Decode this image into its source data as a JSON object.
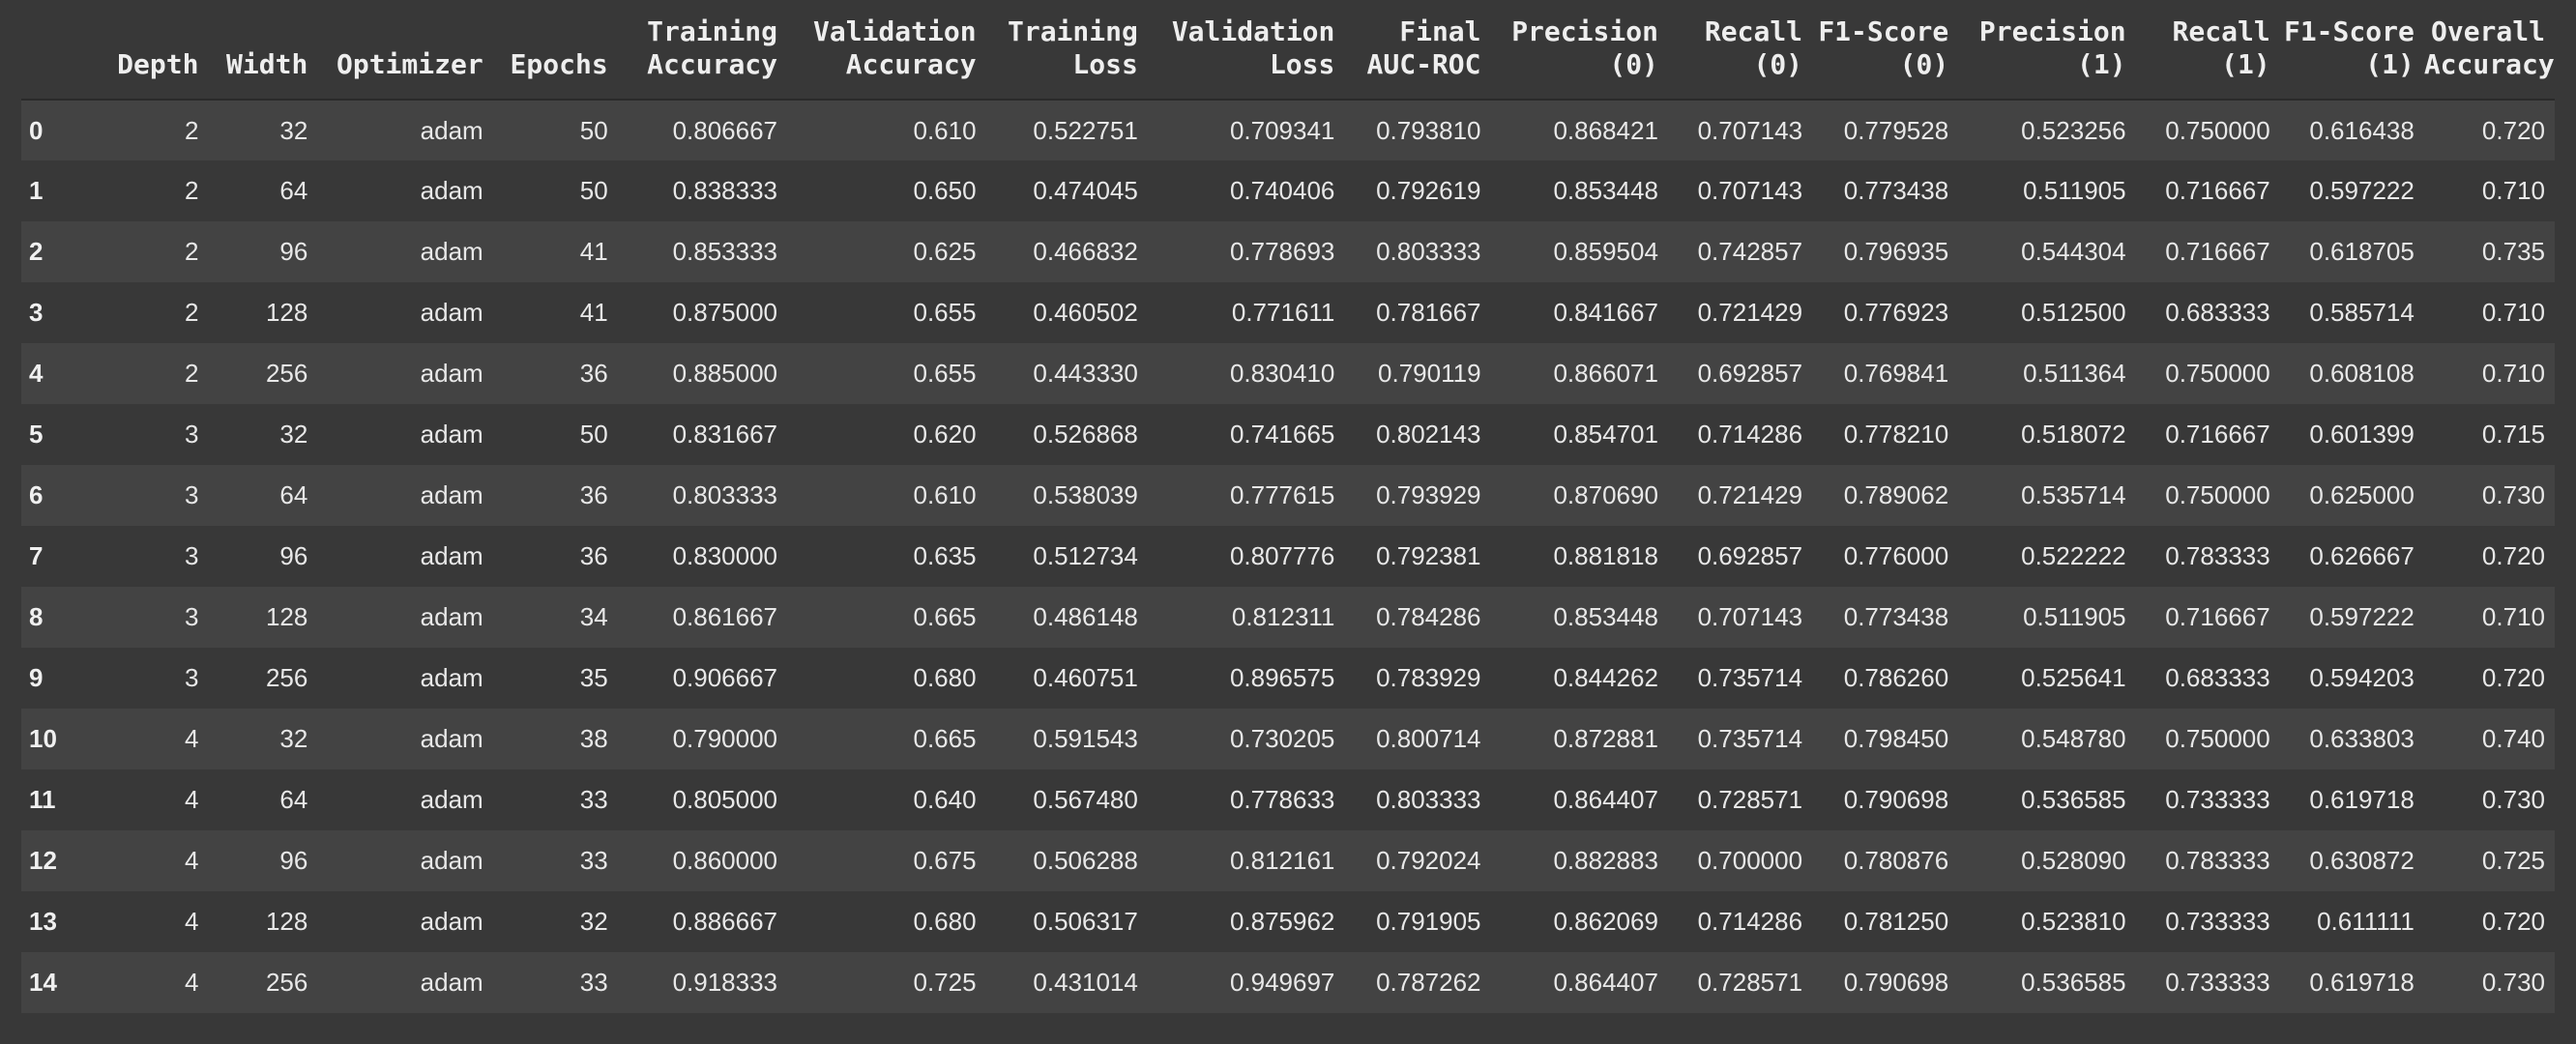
{
  "table": {
    "headers": [
      "",
      "Depth",
      "Width",
      "Optimizer",
      "Epochs",
      "Training Accuracy",
      "Validation Accuracy",
      "Training Loss",
      "Validation Loss",
      "Final AUC-ROC",
      "Precision (0)",
      "Recall (0)",
      "F1-Score (0)",
      "Precision (1)",
      "Recall (1)",
      "F1-Score (1)",
      "Overall Accuracy"
    ],
    "rows": [
      [
        "0",
        "2",
        "32",
        "adam",
        "50",
        "0.806667",
        "0.610",
        "0.522751",
        "0.709341",
        "0.793810",
        "0.868421",
        "0.707143",
        "0.779528",
        "0.523256",
        "0.750000",
        "0.616438",
        "0.720"
      ],
      [
        "1",
        "2",
        "64",
        "adam",
        "50",
        "0.838333",
        "0.650",
        "0.474045",
        "0.740406",
        "0.792619",
        "0.853448",
        "0.707143",
        "0.773438",
        "0.511905",
        "0.716667",
        "0.597222",
        "0.710"
      ],
      [
        "2",
        "2",
        "96",
        "adam",
        "41",
        "0.853333",
        "0.625",
        "0.466832",
        "0.778693",
        "0.803333",
        "0.859504",
        "0.742857",
        "0.796935",
        "0.544304",
        "0.716667",
        "0.618705",
        "0.735"
      ],
      [
        "3",
        "2",
        "128",
        "adam",
        "41",
        "0.875000",
        "0.655",
        "0.460502",
        "0.771611",
        "0.781667",
        "0.841667",
        "0.721429",
        "0.776923",
        "0.512500",
        "0.683333",
        "0.585714",
        "0.710"
      ],
      [
        "4",
        "2",
        "256",
        "adam",
        "36",
        "0.885000",
        "0.655",
        "0.443330",
        "0.830410",
        "0.790119",
        "0.866071",
        "0.692857",
        "0.769841",
        "0.511364",
        "0.750000",
        "0.608108",
        "0.710"
      ],
      [
        "5",
        "3",
        "32",
        "adam",
        "50",
        "0.831667",
        "0.620",
        "0.526868",
        "0.741665",
        "0.802143",
        "0.854701",
        "0.714286",
        "0.778210",
        "0.518072",
        "0.716667",
        "0.601399",
        "0.715"
      ],
      [
        "6",
        "3",
        "64",
        "adam",
        "36",
        "0.803333",
        "0.610",
        "0.538039",
        "0.777615",
        "0.793929",
        "0.870690",
        "0.721429",
        "0.789062",
        "0.535714",
        "0.750000",
        "0.625000",
        "0.730"
      ],
      [
        "7",
        "3",
        "96",
        "adam",
        "36",
        "0.830000",
        "0.635",
        "0.512734",
        "0.807776",
        "0.792381",
        "0.881818",
        "0.692857",
        "0.776000",
        "0.522222",
        "0.783333",
        "0.626667",
        "0.720"
      ],
      [
        "8",
        "3",
        "128",
        "adam",
        "34",
        "0.861667",
        "0.665",
        "0.486148",
        "0.812311",
        "0.784286",
        "0.853448",
        "0.707143",
        "0.773438",
        "0.511905",
        "0.716667",
        "0.597222",
        "0.710"
      ],
      [
        "9",
        "3",
        "256",
        "adam",
        "35",
        "0.906667",
        "0.680",
        "0.460751",
        "0.896575",
        "0.783929",
        "0.844262",
        "0.735714",
        "0.786260",
        "0.525641",
        "0.683333",
        "0.594203",
        "0.720"
      ],
      [
        "10",
        "4",
        "32",
        "adam",
        "38",
        "0.790000",
        "0.665",
        "0.591543",
        "0.730205",
        "0.800714",
        "0.872881",
        "0.735714",
        "0.798450",
        "0.548780",
        "0.750000",
        "0.633803",
        "0.740"
      ],
      [
        "11",
        "4",
        "64",
        "adam",
        "33",
        "0.805000",
        "0.640",
        "0.567480",
        "0.778633",
        "0.803333",
        "0.864407",
        "0.728571",
        "0.790698",
        "0.536585",
        "0.733333",
        "0.619718",
        "0.730"
      ],
      [
        "12",
        "4",
        "96",
        "adam",
        "33",
        "0.860000",
        "0.675",
        "0.506288",
        "0.812161",
        "0.792024",
        "0.882883",
        "0.700000",
        "0.780876",
        "0.528090",
        "0.783333",
        "0.630872",
        "0.725"
      ],
      [
        "13",
        "4",
        "128",
        "adam",
        "32",
        "0.886667",
        "0.680",
        "0.506317",
        "0.875962",
        "0.791905",
        "0.862069",
        "0.714286",
        "0.781250",
        "0.523810",
        "0.733333",
        "0.611111",
        "0.720"
      ],
      [
        "14",
        "4",
        "256",
        "adam",
        "33",
        "0.918333",
        "0.725",
        "0.431014",
        "0.949697",
        "0.787262",
        "0.864407",
        "0.728571",
        "0.790698",
        "0.536585",
        "0.733333",
        "0.619718",
        "0.730"
      ]
    ]
  }
}
